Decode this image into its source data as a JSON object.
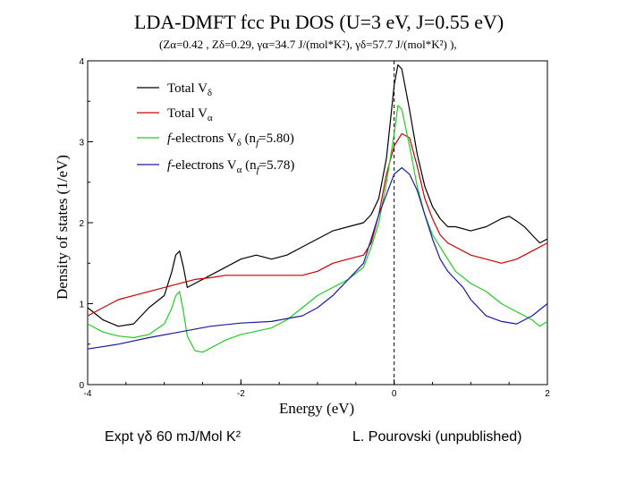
{
  "chart_data": {
    "type": "line",
    "title": "LDA-DMFT fcc Pu DOS (U=3 eV, J=0.55 eV)",
    "subtitle": "(Zα=0.42 , Zδ=0.29, γα=34.7 J/(mol*K²), γδ=57.7 J/(mol*K²) ),",
    "xlabel": "Energy (eV)",
    "ylabel": "Density of states (1/eV)",
    "xlim": [
      -4,
      2
    ],
    "ylim": [
      0,
      4
    ],
    "xticks": [
      "-4",
      "-2",
      "0",
      "2"
    ],
    "yticks": [
      "0",
      "1",
      "2",
      "3",
      "4"
    ],
    "legend_position": "top-left",
    "fermi_line": 0,
    "series": [
      {
        "name": "Total Vδ",
        "color": "#000000",
        "x": [
          -4.0,
          -3.8,
          -3.6,
          -3.4,
          -3.2,
          -3.0,
          -2.9,
          -2.85,
          -2.8,
          -2.75,
          -2.7,
          -2.6,
          -2.4,
          -2.2,
          -2.0,
          -1.8,
          -1.6,
          -1.4,
          -1.2,
          -1.0,
          -0.8,
          -0.6,
          -0.4,
          -0.3,
          -0.2,
          -0.1,
          0.0,
          0.05,
          0.1,
          0.2,
          0.3,
          0.4,
          0.5,
          0.6,
          0.7,
          0.8,
          1.0,
          1.2,
          1.4,
          1.5,
          1.6,
          1.7,
          1.8,
          1.9,
          2.0
        ],
        "y": [
          0.95,
          0.8,
          0.72,
          0.75,
          0.95,
          1.1,
          1.4,
          1.6,
          1.65,
          1.45,
          1.2,
          1.25,
          1.35,
          1.45,
          1.55,
          1.6,
          1.55,
          1.6,
          1.7,
          1.8,
          1.9,
          1.95,
          2.0,
          2.1,
          2.3,
          2.8,
          3.7,
          3.95,
          3.9,
          3.4,
          2.85,
          2.45,
          2.2,
          2.05,
          1.95,
          1.95,
          1.9,
          1.95,
          2.05,
          2.08,
          2.02,
          1.95,
          1.85,
          1.75,
          1.8
        ]
      },
      {
        "name": "Total Vα",
        "color": "#cc0000",
        "x": [
          -4.0,
          -3.8,
          -3.6,
          -3.4,
          -3.2,
          -3.0,
          -2.8,
          -2.6,
          -2.4,
          -2.2,
          -2.0,
          -1.8,
          -1.6,
          -1.4,
          -1.2,
          -1.0,
          -0.8,
          -0.6,
          -0.4,
          -0.3,
          -0.2,
          -0.1,
          0.0,
          0.1,
          0.2,
          0.3,
          0.4,
          0.5,
          0.6,
          0.7,
          0.8,
          0.9,
          1.0,
          1.2,
          1.4,
          1.6,
          1.8,
          2.0
        ],
        "y": [
          0.85,
          0.95,
          1.05,
          1.1,
          1.15,
          1.2,
          1.25,
          1.3,
          1.32,
          1.35,
          1.35,
          1.35,
          1.35,
          1.35,
          1.35,
          1.4,
          1.5,
          1.55,
          1.6,
          1.75,
          2.1,
          2.6,
          2.95,
          3.1,
          3.05,
          2.7,
          2.3,
          2.05,
          1.85,
          1.75,
          1.7,
          1.65,
          1.6,
          1.55,
          1.5,
          1.55,
          1.65,
          1.75
        ]
      },
      {
        "name": "f-electrons Vδ (nf=5.80)",
        "color": "#22cc22",
        "x": [
          -4.0,
          -3.8,
          -3.6,
          -3.4,
          -3.2,
          -3.0,
          -2.9,
          -2.85,
          -2.8,
          -2.75,
          -2.7,
          -2.6,
          -2.5,
          -2.4,
          -2.2,
          -2.0,
          -1.8,
          -1.6,
          -1.4,
          -1.2,
          -1.0,
          -0.8,
          -0.6,
          -0.4,
          -0.3,
          -0.2,
          -0.1,
          0.0,
          0.05,
          0.1,
          0.2,
          0.3,
          0.4,
          0.5,
          0.6,
          0.7,
          0.8,
          1.0,
          1.2,
          1.4,
          1.6,
          1.8,
          1.9,
          2.0
        ],
        "y": [
          0.75,
          0.65,
          0.6,
          0.58,
          0.62,
          0.75,
          0.95,
          1.1,
          1.15,
          0.9,
          0.6,
          0.42,
          0.4,
          0.45,
          0.55,
          0.62,
          0.66,
          0.7,
          0.8,
          0.95,
          1.1,
          1.2,
          1.3,
          1.45,
          1.7,
          2.0,
          2.5,
          3.1,
          3.45,
          3.4,
          2.95,
          2.45,
          2.1,
          1.85,
          1.7,
          1.55,
          1.4,
          1.25,
          1.15,
          1.0,
          0.9,
          0.8,
          0.72,
          0.78
        ]
      },
      {
        "name": "f-electrons Vα (nf=5.78)",
        "color": "#1a1aa0",
        "x": [
          -4.0,
          -3.6,
          -3.2,
          -2.8,
          -2.4,
          -2.0,
          -1.6,
          -1.2,
          -1.0,
          -0.8,
          -0.6,
          -0.4,
          -0.3,
          -0.2,
          -0.1,
          0.0,
          0.1,
          0.2,
          0.3,
          0.4,
          0.5,
          0.6,
          0.7,
          0.8,
          0.9,
          1.0,
          1.2,
          1.4,
          1.6,
          1.8,
          2.0
        ],
        "y": [
          0.44,
          0.5,
          0.58,
          0.65,
          0.72,
          0.76,
          0.78,
          0.85,
          0.95,
          1.1,
          1.3,
          1.5,
          1.8,
          2.1,
          2.35,
          2.6,
          2.68,
          2.6,
          2.4,
          2.1,
          1.8,
          1.55,
          1.4,
          1.3,
          1.2,
          1.05,
          0.85,
          0.78,
          0.75,
          0.85,
          1.0
        ]
      }
    ]
  },
  "legend": [
    {
      "main": "Total V",
      "sub": "δ",
      "extra": "",
      "extra_sub": "",
      "extra_end": ""
    },
    {
      "main": "Total V",
      "sub": "α",
      "extra": "",
      "extra_sub": "",
      "extra_end": ""
    },
    {
      "italic": "f",
      "main": "-electrons V",
      "sub": "δ",
      "extra": " (n",
      "extra_sub": "f",
      "extra_end": "=5.80)"
    },
    {
      "italic": "f",
      "main": "-electrons V",
      "sub": "α",
      "extra": " (n",
      "extra_sub": "f",
      "extra_end": "=5.78)"
    }
  ],
  "footer": {
    "left": "Expt γδ 60 mJ/Mol K²",
    "right": "L. Pourovski (unpublished)"
  }
}
